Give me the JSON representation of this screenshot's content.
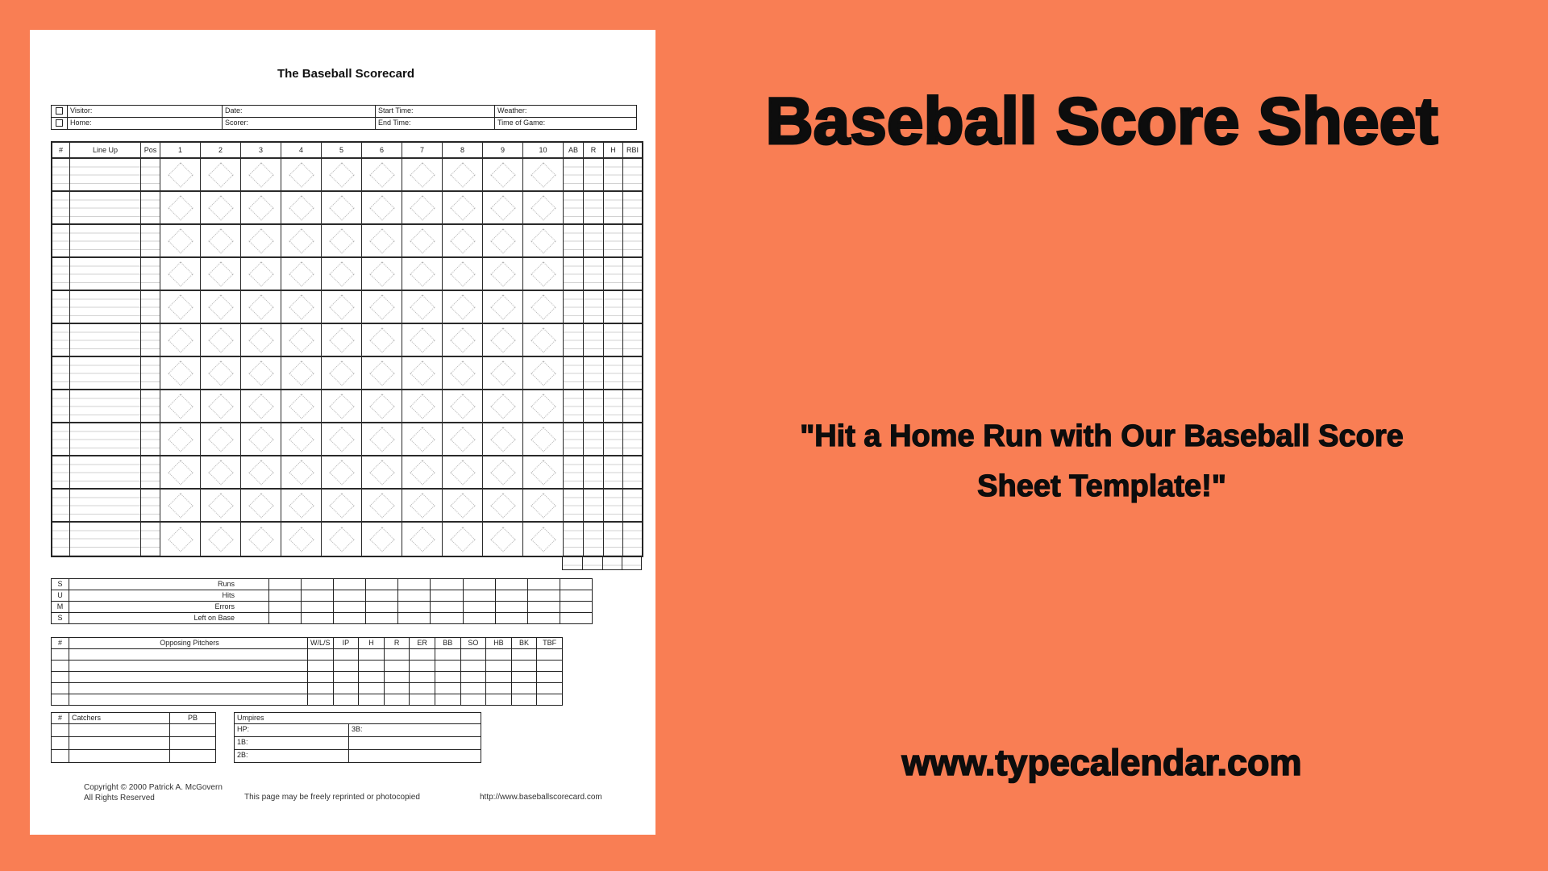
{
  "colors": {
    "background": "#F97E54",
    "paper": "#FFFFFF",
    "ink": "#111111",
    "grid_line": "#2A2A2A",
    "light_line": "#D2D2D2",
    "diamond": "#B5B5B5"
  },
  "scorecard": {
    "title": "The Baseball Scorecard",
    "info": {
      "rows": [
        {
          "label": "Visitor:",
          "col2": "Date:",
          "col3": "Start Time:",
          "col4": "Weather:"
        },
        {
          "label": "Home:",
          "col2": "Scorer:",
          "col3": "End Time:",
          "col4": "Time of Game:"
        }
      ]
    },
    "grid": {
      "headers": [
        "#",
        "Line Up",
        "Pos"
      ],
      "innings": [
        "1",
        "2",
        "3",
        "4",
        "5",
        "6",
        "7",
        "8",
        "9",
        "10"
      ],
      "stat_headers": [
        "AB",
        "R",
        "H",
        "RBI"
      ],
      "batter_rows": 12
    },
    "sums": {
      "side_letters": [
        "S",
        "U",
        "M",
        "S"
      ],
      "rows": [
        "Runs",
        "Hits",
        "Errors",
        "Left on Base"
      ],
      "data_cols": 10
    },
    "pitchers": {
      "headers": [
        "#",
        "Opposing Pitchers",
        "W/L/S",
        "IP",
        "H",
        "R",
        "ER",
        "BB",
        "SO",
        "HB",
        "BK",
        "TBF"
      ],
      "data_rows": 5
    },
    "catchers": {
      "headers": [
        "#",
        "Catchers",
        "PB"
      ],
      "data_rows": 3
    },
    "umpires": {
      "title": "Umpires",
      "rows": [
        [
          "HP:",
          "3B:"
        ],
        [
          "1B:",
          ""
        ],
        [
          "2B:",
          ""
        ]
      ]
    },
    "footer": {
      "copyright_line1": "Copyright © 2000 Patrick A. McGovern",
      "copyright_line2": "All Rights Reserved",
      "center": "This page may be freely reprinted or photocopied",
      "url": "http://www.baseballscorecard.com"
    }
  },
  "promo": {
    "title": "Baseball Score Sheet",
    "quote_line1": "\"Hit a Home Run with Our Baseball Score",
    "quote_line2": "Sheet Template!\"",
    "website": "www.typecalendar.com"
  }
}
